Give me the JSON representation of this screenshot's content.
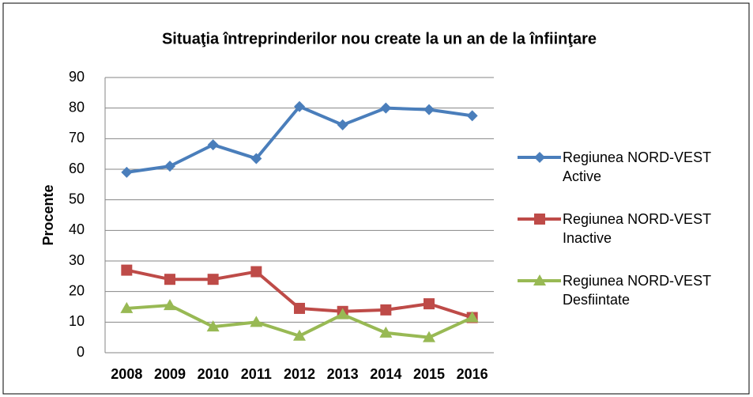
{
  "chart_data": {
    "type": "line",
    "title": "Situaţia întreprinderilor nou create la un an de la înfiinţare",
    "y_label": "Procente",
    "categories": [
      "2008",
      "2009",
      "2010",
      "2011",
      "2012",
      "2013",
      "2014",
      "2015",
      "2016"
    ],
    "series": [
      {
        "name": "Regiunea NORD-VEST Active",
        "color": "#4a7ebb",
        "marker": "diamond",
        "values": [
          59,
          61,
          68,
          63.5,
          80.5,
          74.5,
          80,
          79.5,
          77.5
        ]
      },
      {
        "name": "Regiunea NORD-VEST Inactive",
        "color": "#be4b48",
        "marker": "square",
        "values": [
          27,
          24,
          24,
          26.5,
          14.5,
          13.5,
          14,
          16,
          11.5
        ]
      },
      {
        "name": "Regiunea NORD-VEST Desfiintate",
        "color": "#98b954",
        "marker": "triangle",
        "values": [
          14.5,
          15.5,
          8.5,
          10,
          5.5,
          12.5,
          6.5,
          5,
          11.5
        ]
      }
    ],
    "ylim": [
      0,
      90
    ],
    "yticks": [
      0,
      10,
      20,
      30,
      40,
      50,
      60,
      70,
      80,
      90
    ],
    "grid": true,
    "legend": "right"
  }
}
